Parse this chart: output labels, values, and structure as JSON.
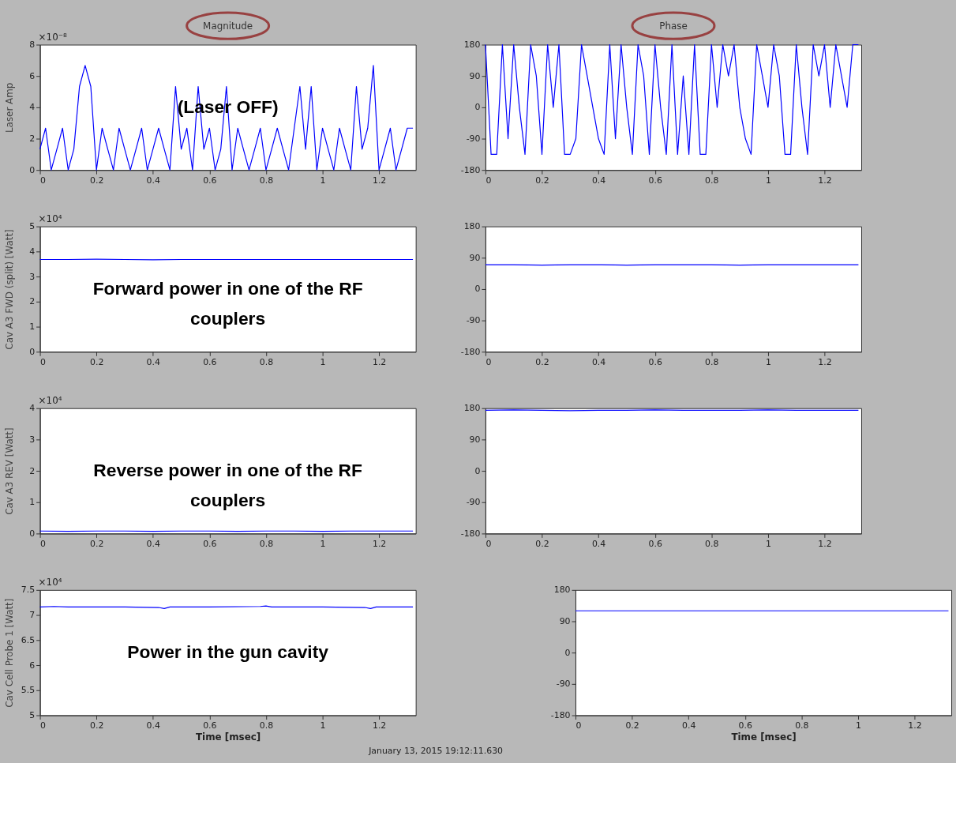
{
  "chart_data": [
    {
      "type": "line",
      "title": "Magnitude",
      "ylabel": "Laser Amp",
      "annotations": [
        "×10⁻⁸",
        "(Laser OFF)"
      ],
      "x": [
        0,
        0.02,
        0.04,
        0.06,
        0.08,
        0.1,
        0.12,
        0.14,
        0.16,
        0.18,
        0.2,
        0.22,
        0.24,
        0.26,
        0.28,
        0.3,
        0.32,
        0.34,
        0.36,
        0.38,
        0.4,
        0.42,
        0.44,
        0.46,
        0.48,
        0.5,
        0.52,
        0.54,
        0.56,
        0.58,
        0.6,
        0.62,
        0.64,
        0.66,
        0.68,
        0.7,
        0.72,
        0.74,
        0.76,
        0.78,
        0.8,
        0.82,
        0.84,
        0.86,
        0.88,
        0.9,
        0.92,
        0.94,
        0.96,
        0.98,
        1.0,
        1.02,
        1.04,
        1.06,
        1.08,
        1.1,
        1.12,
        1.14,
        1.16,
        1.18,
        1.2,
        1.22,
        1.24,
        1.26,
        1.28,
        1.3,
        1.32
      ],
      "series": [
        {
          "color": "#0000ff",
          "values": [
            1.33,
            2.67,
            0,
            1.33,
            2.67,
            0,
            1.33,
            5.33,
            6.67,
            5.33,
            0,
            2.67,
            1.33,
            0,
            2.67,
            1.33,
            0,
            1.33,
            2.67,
            0,
            1.33,
            2.67,
            1.33,
            0,
            5.33,
            1.33,
            2.67,
            0,
            5.33,
            1.33,
            2.67,
            0,
            1.33,
            5.33,
            0,
            2.67,
            1.33,
            0,
            1.33,
            2.67,
            0,
            1.33,
            2.67,
            1.33,
            0,
            2.67,
            5.33,
            1.33,
            5.33,
            0,
            2.67,
            1.33,
            0,
            2.67,
            1.33,
            0,
            5.33,
            1.33,
            2.67,
            6.67,
            0,
            1.33,
            2.67,
            0,
            1.33,
            2.67,
            2.67
          ]
        }
      ],
      "xlim": [
        0,
        1.33
      ],
      "xticks": [
        0,
        0.2,
        0.4,
        0.6,
        0.8,
        1,
        1.2
      ],
      "ylim": [
        0,
        8
      ],
      "yticks": [
        0,
        2,
        4,
        6,
        8
      ]
    },
    {
      "type": "line",
      "title": "Phase",
      "x": [
        0,
        0.02,
        0.04,
        0.06,
        0.08,
        0.1,
        0.12,
        0.14,
        0.16,
        0.18,
        0.2,
        0.22,
        0.24,
        0.26,
        0.28,
        0.3,
        0.32,
        0.34,
        0.36,
        0.38,
        0.4,
        0.42,
        0.44,
        0.46,
        0.48,
        0.5,
        0.52,
        0.54,
        0.56,
        0.58,
        0.6,
        0.62,
        0.64,
        0.66,
        0.68,
        0.7,
        0.72,
        0.74,
        0.76,
        0.78,
        0.8,
        0.82,
        0.84,
        0.86,
        0.88,
        0.9,
        0.92,
        0.94,
        0.96,
        0.98,
        1.0,
        1.02,
        1.04,
        1.06,
        1.08,
        1.1,
        1.12,
        1.14,
        1.16,
        1.18,
        1.2,
        1.22,
        1.24,
        1.26,
        1.28,
        1.3,
        1.32
      ],
      "series": [
        {
          "color": "#0000ff",
          "values": [
            180,
            -135,
            -135,
            180,
            -90,
            180,
            0,
            -135,
            180,
            90,
            -135,
            180,
            0,
            180,
            -135,
            -135,
            -90,
            180,
            90,
            0,
            -90,
            -135,
            180,
            -90,
            180,
            0,
            -135,
            180,
            90,
            -135,
            180,
            0,
            -135,
            180,
            -135,
            90,
            -135,
            180,
            -135,
            -135,
            180,
            0,
            180,
            90,
            180,
            0,
            -90,
            -135,
            180,
            90,
            0,
            180,
            90,
            -135,
            -135,
            180,
            0,
            -135,
            180,
            90,
            180,
            0,
            180,
            90,
            0,
            180,
            180
          ]
        }
      ],
      "xlim": [
        0,
        1.33
      ],
      "xticks": [
        0,
        0.2,
        0.4,
        0.6,
        0.8,
        1,
        1.2
      ],
      "ylim": [
        -180,
        180
      ],
      "yticks": [
        -180,
        -90,
        0,
        90,
        180
      ]
    },
    {
      "type": "line",
      "ylabel": "Cav A3 FWD (split) [Watt]",
      "annotations": [
        "×10⁴",
        "Forward power in one of the RF couplers"
      ],
      "x": [
        0,
        0.1,
        0.2,
        0.3,
        0.4,
        0.5,
        0.6,
        0.7,
        0.8,
        0.9,
        1.0,
        1.1,
        1.2,
        1.32
      ],
      "series": [
        {
          "color": "#0000ff",
          "values": [
            3.68,
            3.68,
            3.69,
            3.68,
            3.67,
            3.68,
            3.68,
            3.68,
            3.68,
            3.68,
            3.68,
            3.68,
            3.68,
            3.68
          ]
        }
      ],
      "xlim": [
        0,
        1.33
      ],
      "xticks": [
        0,
        0.2,
        0.4,
        0.6,
        0.8,
        1,
        1.2
      ],
      "ylim": [
        0,
        5
      ],
      "yticks": [
        0,
        1,
        2,
        3,
        4,
        5
      ]
    },
    {
      "type": "line",
      "x": [
        0,
        0.1,
        0.2,
        0.3,
        0.4,
        0.5,
        0.6,
        0.7,
        0.8,
        0.9,
        1.0,
        1.1,
        1.2,
        1.32
      ],
      "series": [
        {
          "color": "#0000ff",
          "values": [
            70,
            70,
            69,
            70,
            70,
            69,
            70,
            70,
            70,
            69,
            70,
            70,
            70,
            70
          ]
        }
      ],
      "xlim": [
        0,
        1.33
      ],
      "xticks": [
        0,
        0.2,
        0.4,
        0.6,
        0.8,
        1,
        1.2
      ],
      "ylim": [
        -180,
        180
      ],
      "yticks": [
        -180,
        -90,
        0,
        90,
        180
      ]
    },
    {
      "type": "line",
      "ylabel": "Cav A3 REV [Watt]",
      "annotations": [
        "×10⁴",
        "Reverse power in one of the RF couplers"
      ],
      "x": [
        0,
        0.1,
        0.2,
        0.3,
        0.4,
        0.5,
        0.6,
        0.7,
        0.8,
        0.9,
        1.0,
        1.1,
        1.2,
        1.32
      ],
      "series": [
        {
          "color": "#0000ff",
          "values": [
            0.08,
            0.07,
            0.08,
            0.08,
            0.07,
            0.08,
            0.08,
            0.07,
            0.08,
            0.08,
            0.07,
            0.08,
            0.08,
            0.08
          ]
        }
      ],
      "xlim": [
        0,
        1.33
      ],
      "xticks": [
        0,
        0.2,
        0.4,
        0.6,
        0.8,
        1,
        1.2
      ],
      "ylim": [
        0,
        4
      ],
      "yticks": [
        0,
        1,
        2,
        3,
        4
      ]
    },
    {
      "type": "line",
      "x": [
        0,
        0.1,
        0.2,
        0.3,
        0.4,
        0.5,
        0.6,
        0.7,
        0.8,
        0.9,
        1.0,
        1.1,
        1.2,
        1.32
      ],
      "series": [
        {
          "color": "#0000ff",
          "values": [
            174,
            175,
            174,
            173,
            174,
            174,
            175,
            174,
            174,
            174,
            175,
            174,
            174,
            174
          ]
        }
      ],
      "xlim": [
        0,
        1.33
      ],
      "xticks": [
        0,
        0.2,
        0.4,
        0.6,
        0.8,
        1,
        1.2
      ],
      "ylim": [
        -180,
        180
      ],
      "yticks": [
        -180,
        -90,
        0,
        90,
        180
      ]
    },
    {
      "type": "line",
      "xlabel": "Time [msec]",
      "ylabel": "Cav Cell Probe 1 [Watt]",
      "annotations": [
        "×10⁴",
        "Power in the gun cavity",
        "January 13, 2015  19:12:11.630"
      ],
      "x": [
        0,
        0.05,
        0.1,
        0.3,
        0.42,
        0.44,
        0.46,
        0.6,
        0.78,
        0.8,
        0.82,
        1.0,
        1.15,
        1.17,
        1.19,
        1.32
      ],
      "series": [
        {
          "color": "#0000ff",
          "values": [
            7.16,
            7.17,
            7.16,
            7.16,
            7.15,
            7.13,
            7.16,
            7.16,
            7.17,
            7.18,
            7.16,
            7.16,
            7.15,
            7.13,
            7.16,
            7.16
          ]
        }
      ],
      "xlim": [
        0,
        1.33
      ],
      "xticks": [
        0,
        0.2,
        0.4,
        0.6,
        0.8,
        1,
        1.2
      ],
      "ylim": [
        5,
        7.5
      ],
      "yticks": [
        5,
        5.5,
        6,
        6.5,
        7,
        7.5
      ]
    },
    {
      "type": "line",
      "xlabel": "Time [msec]",
      "x": [
        0,
        0.1,
        0.2,
        0.3,
        0.4,
        0.5,
        0.6,
        0.7,
        0.8,
        0.9,
        1.0,
        1.1,
        1.2,
        1.32
      ],
      "series": [
        {
          "color": "#0000ff",
          "values": [
            120,
            120,
            120,
            120,
            120,
            120,
            120,
            120,
            120,
            120,
            120,
            120,
            120,
            120
          ]
        }
      ],
      "xlim": [
        0,
        1.33
      ],
      "xticks": [
        0,
        0.2,
        0.4,
        0.6,
        0.8,
        1,
        1.2
      ],
      "ylim": [
        -180,
        180
      ],
      "yticks": [
        -180,
        -90,
        0,
        90,
        180
      ]
    }
  ]
}
